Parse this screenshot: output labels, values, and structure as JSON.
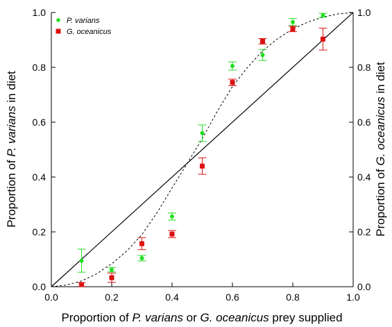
{
  "chart_data": {
    "type": "scatter",
    "xlim": [
      0,
      1
    ],
    "ylim": [
      0,
      1
    ],
    "x_ticks": [
      "0.0",
      "0.2",
      "0.4",
      "0.6",
      "0.8",
      "1.0"
    ],
    "y_ticks": [
      "0.0",
      "0.2",
      "0.4",
      "0.6",
      "0.8",
      "1.0"
    ],
    "xlabel": {
      "pre": "Proportion of ",
      "it1": "P. varians",
      "mid": " or ",
      "it2": "G. oceanicus",
      "post": " prey supplied"
    },
    "ylabel_left": {
      "pre": "Proportion of ",
      "it": "P. varians",
      "post": " in diet"
    },
    "ylabel_right": {
      "pre": "Proportion of ",
      "it": "G. oceanicus",
      "post": " in diet"
    },
    "legend_position": "top-left",
    "grid": false,
    "series": [
      {
        "name": "P. varians",
        "color": "#22dd22",
        "marker": "circle",
        "x": [
          0.1,
          0.2,
          0.3,
          0.4,
          0.5,
          0.6,
          0.7,
          0.8,
          0.9
        ],
        "y": [
          0.095,
          0.062,
          0.104,
          0.256,
          0.56,
          0.805,
          0.845,
          0.965,
          0.99
        ],
        "err": [
          0.042,
          0.008,
          0.01,
          0.013,
          0.03,
          0.015,
          0.02,
          0.013,
          0.007
        ]
      },
      {
        "name": "G. oceanicus",
        "color": "#dd1111",
        "marker": "square",
        "x": [
          0.1,
          0.2,
          0.3,
          0.4,
          0.5,
          0.6,
          0.7,
          0.8,
          0.9
        ],
        "y": [
          0.008,
          0.033,
          0.157,
          0.192,
          0.44,
          0.745,
          0.895,
          0.94,
          0.903
        ],
        "err": [
          0.007,
          0.017,
          0.022,
          0.013,
          0.03,
          0.012,
          0.01,
          0.01,
          0.04
        ]
      }
    ],
    "reference_line": {
      "style": "solid",
      "from": [
        0,
        0
      ],
      "to": [
        1,
        1
      ]
    },
    "fitted_curve": {
      "style": "dashed",
      "x": [
        0,
        0.05,
        0.1,
        0.15,
        0.2,
        0.25,
        0.3,
        0.35,
        0.4,
        0.45,
        0.5,
        0.55,
        0.6,
        0.65,
        0.7,
        0.75,
        0.8,
        0.85,
        0.9,
        0.95,
        1.0
      ],
      "y": [
        0,
        0.006,
        0.021,
        0.047,
        0.084,
        0.13,
        0.19,
        0.27,
        0.36,
        0.45,
        0.54,
        0.64,
        0.73,
        0.8,
        0.86,
        0.905,
        0.94,
        0.965,
        0.983,
        0.995,
        1.0
      ]
    }
  }
}
